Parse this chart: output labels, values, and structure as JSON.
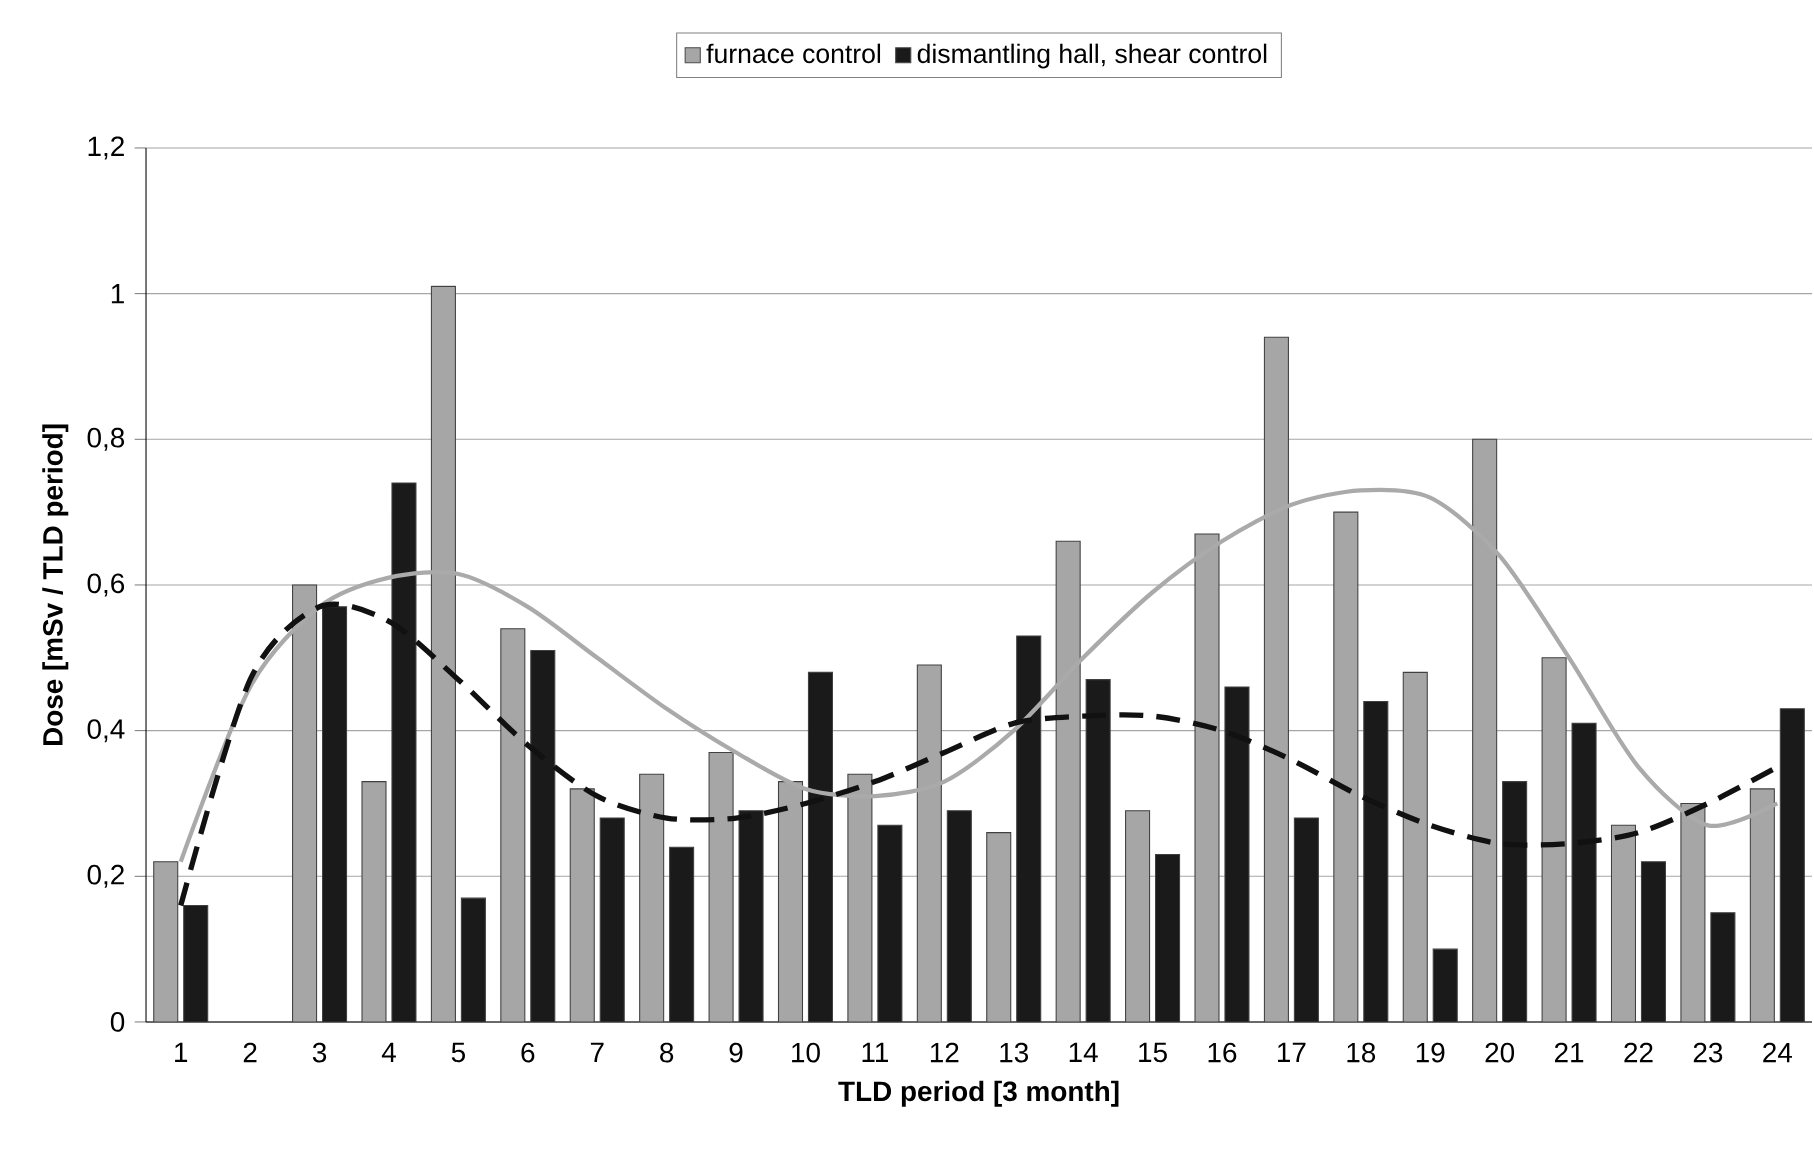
{
  "chart_data": {
    "type": "bar",
    "xlabel": "TLD period [3 month]",
    "ylabel": "Dose [mSv / TLD period]",
    "categories": [
      "1",
      "2",
      "3",
      "4",
      "5",
      "6",
      "7",
      "8",
      "9",
      "10",
      "11",
      "12",
      "13",
      "14",
      "15",
      "16",
      "17",
      "18",
      "19",
      "20",
      "21",
      "22",
      "23",
      "24"
    ],
    "series": [
      {
        "name": "furnace control",
        "color": "#a6a6a6",
        "values": [
          0.22,
          null,
          0.6,
          0.33,
          1.01,
          0.54,
          0.32,
          0.34,
          0.37,
          0.33,
          0.34,
          0.49,
          0.26,
          0.66,
          0.29,
          0.67,
          0.94,
          0.7,
          0.48,
          0.8,
          0.5,
          0.27,
          0.3,
          0.32
        ]
      },
      {
        "name": "dismantling hall, shear control",
        "color": "#1a1a1a",
        "values": [
          0.16,
          null,
          0.57,
          0.74,
          0.17,
          0.51,
          0.28,
          0.24,
          0.29,
          0.48,
          0.27,
          0.29,
          0.53,
          0.47,
          0.23,
          0.46,
          0.28,
          0.44,
          0.1,
          0.33,
          0.41,
          0.22,
          0.15,
          0.43
        ]
      },
      {
        "type": "line",
        "color": "#aaaaaa",
        "line_style": "solid",
        "values": [
          0.22,
          0.46,
          0.57,
          0.61,
          0.615,
          0.57,
          0.5,
          0.43,
          0.37,
          0.32,
          0.31,
          0.33,
          0.4,
          0.5,
          0.59,
          0.66,
          0.71,
          0.73,
          0.72,
          0.64,
          0.5,
          0.35,
          0.27,
          0.3
        ]
      },
      {
        "type": "line",
        "color": "#111111",
        "line_style": "dashed",
        "values": [
          0.16,
          0.47,
          0.57,
          0.55,
          0.47,
          0.38,
          0.31,
          0.28,
          0.28,
          0.3,
          0.33,
          0.37,
          0.41,
          0.42,
          0.42,
          0.4,
          0.36,
          0.31,
          0.27,
          0.245,
          0.245,
          0.26,
          0.3,
          0.35
        ]
      }
    ],
    "ylim": [
      0,
      1.2
    ],
    "yticks": [
      0,
      {
        "value": 0.2,
        "label": "0,2"
      },
      {
        "value": 0.4,
        "label": "0,4"
      },
      {
        "value": 0.6,
        "label": "0,6"
      },
      {
        "value": 0.8,
        "label": "0,8"
      },
      1,
      {
        "value": 1.2,
        "label": "1,2"
      }
    ],
    "grid": "y",
    "legend": "top"
  }
}
